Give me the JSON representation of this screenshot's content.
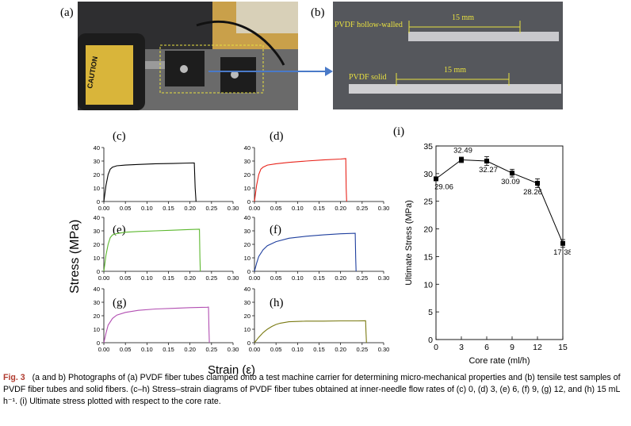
{
  "panel_letters": {
    "a": "(a)",
    "b": "(b)",
    "c": "(c)",
    "d": "(d)",
    "e": "(e)",
    "f": "(f)",
    "g": "(g)",
    "h": "(h)",
    "i": "(i)"
  },
  "photo_b": {
    "label_hollow": "PVDF hollow-walled",
    "label_solid": "PVDF solid",
    "dim_top": "15 mm",
    "dim_bottom": "15 mm"
  },
  "photo_a": {
    "caution": "CAUTION"
  },
  "shared_axes": {
    "ylabel": "Stress (MPa)",
    "xlabel": "Strain (ε)"
  },
  "colors": {
    "c": "#000000",
    "d": "#e8241b",
    "e": "#5cb82e",
    "f": "#1f3f9e",
    "g": "#b24fb2",
    "h": "#7a7a12",
    "i": "#000000",
    "caption_label": "#b03a2e"
  },
  "chart_data": [
    {
      "panel": "c",
      "type": "line",
      "xlim": [
        0,
        0.3
      ],
      "ylim": [
        0,
        40
      ],
      "xticks": [
        "0.00",
        "0.05",
        "0.10",
        "0.15",
        "0.20",
        "0.25",
        "0.30"
      ],
      "yticks": [
        "0",
        "10",
        "20",
        "30",
        "40"
      ],
      "x": [
        0,
        0.005,
        0.01,
        0.015,
        0.02,
        0.03,
        0.05,
        0.08,
        0.12,
        0.16,
        0.2,
        0.21,
        0.212,
        0.214
      ],
      "y": [
        0,
        12,
        20,
        24,
        25.5,
        26.5,
        27,
        27.5,
        28,
        28.2,
        28.5,
        28.6,
        10,
        0
      ]
    },
    {
      "panel": "d",
      "type": "line",
      "xlim": [
        0,
        0.3
      ],
      "ylim": [
        0,
        40
      ],
      "xticks": [
        "0.00",
        "0.05",
        "0.10",
        "0.15",
        "0.20",
        "0.25",
        "0.30"
      ],
      "yticks": [
        "0",
        "10",
        "20",
        "30",
        "40"
      ],
      "x": [
        0,
        0.005,
        0.01,
        0.015,
        0.02,
        0.03,
        0.05,
        0.08,
        0.12,
        0.16,
        0.2,
        0.212,
        0.213,
        0.214
      ],
      "y": [
        0,
        12,
        20,
        24,
        25.5,
        27,
        28,
        29,
        30,
        30.8,
        31.5,
        31.8,
        10,
        0
      ]
    },
    {
      "panel": "e",
      "type": "line",
      "xlim": [
        0,
        0.3
      ],
      "ylim": [
        0,
        40
      ],
      "xticks": [
        "0.00",
        "0.05",
        "0.10",
        "0.15",
        "0.20",
        "0.25",
        "0.30"
      ],
      "yticks": [
        "0",
        "10",
        "20",
        "30",
        "40"
      ],
      "x": [
        0,
        0.005,
        0.01,
        0.015,
        0.02,
        0.03,
        0.05,
        0.08,
        0.12,
        0.16,
        0.2,
        0.222,
        0.223,
        0.224
      ],
      "y": [
        0,
        12,
        20,
        25,
        27,
        28,
        29,
        29.5,
        30,
        30.5,
        31,
        31.2,
        10,
        0
      ]
    },
    {
      "panel": "f",
      "type": "line",
      "xlim": [
        0,
        0.3
      ],
      "ylim": [
        0,
        40
      ],
      "xticks": [
        "0.00",
        "0.05",
        "0.10",
        "0.15",
        "0.20",
        "0.25",
        "0.30"
      ],
      "yticks": [
        "0",
        "10",
        "20",
        "30",
        "40"
      ],
      "x": [
        0,
        0.005,
        0.01,
        0.02,
        0.03,
        0.05,
        0.08,
        0.12,
        0.16,
        0.2,
        0.234,
        0.235,
        0.236
      ],
      "y": [
        0,
        6,
        11,
        16,
        19,
        22,
        24.5,
        26,
        27,
        27.8,
        28.2,
        10,
        0
      ]
    },
    {
      "panel": "g",
      "type": "line",
      "xlim": [
        0,
        0.3
      ],
      "ylim": [
        0,
        40
      ],
      "xticks": [
        "0.00",
        "0.05",
        "0.10",
        "0.15",
        "0.20",
        "0.25",
        "0.30"
      ],
      "yticks": [
        "0",
        "10",
        "20",
        "30",
        "40"
      ],
      "x": [
        0,
        0.005,
        0.01,
        0.02,
        0.03,
        0.05,
        0.08,
        0.12,
        0.16,
        0.2,
        0.24,
        0.243,
        0.244,
        0.245
      ],
      "y": [
        0,
        7,
        13,
        18,
        20.5,
        22.5,
        24,
        25,
        25.5,
        26,
        26.3,
        26.4,
        10,
        0
      ]
    },
    {
      "panel": "h",
      "type": "line",
      "xlim": [
        0,
        0.3
      ],
      "ylim": [
        0,
        40
      ],
      "xticks": [
        "0.00",
        "0.05",
        "0.10",
        "0.15",
        "0.20",
        "0.25",
        "0.30"
      ],
      "yticks": [
        "0",
        "10",
        "20",
        "30",
        "40"
      ],
      "x": [
        0,
        0.01,
        0.02,
        0.03,
        0.04,
        0.05,
        0.06,
        0.08,
        0.12,
        0.16,
        0.2,
        0.24,
        0.258,
        0.259,
        0.26
      ],
      "y": [
        0,
        4,
        7.5,
        10,
        12,
        13.5,
        14.5,
        15.5,
        16,
        16,
        16.2,
        16.2,
        16.3,
        8,
        0
      ]
    },
    {
      "panel": "i",
      "type": "line",
      "xlabel": "Core rate (ml/h)",
      "ylabel": "Ultimate Stress (MPa)",
      "xlim": [
        0,
        15
      ],
      "ylim": [
        0,
        35
      ],
      "xticks": [
        "0",
        "3",
        "6",
        "9",
        "12",
        "15"
      ],
      "yticks": [
        "0",
        "5",
        "10",
        "15",
        "20",
        "25",
        "30",
        "35"
      ],
      "x": [
        0,
        3,
        6,
        9,
        12,
        15
      ],
      "y": [
        29.06,
        32.49,
        32.27,
        30.09,
        28.26,
        17.38
      ],
      "err": [
        0.3,
        0.5,
        0.8,
        0.7,
        0.8,
        0.7
      ],
      "labels": [
        "29.06",
        "32.49",
        "32.27",
        "30.09",
        "28.26",
        "17.38"
      ]
    }
  ],
  "caption": {
    "label": "Fig. 3",
    "text": "(a and b) Photographs of (a) PVDF fiber tubes clamped onto a test machine carrier for determining micro-mechanical properties and (b) tensile test samples of PVDF fiber tubes and solid fibers. (c–h) Stress–strain diagrams of PVDF fiber tubes obtained at inner-needle flow rates of (c) 0, (d) 3, (e) 6, (f) 9, (g) 12, and (h) 15 mL h⁻¹. (i) Ultimate stress plotted with respect to the core rate."
  }
}
